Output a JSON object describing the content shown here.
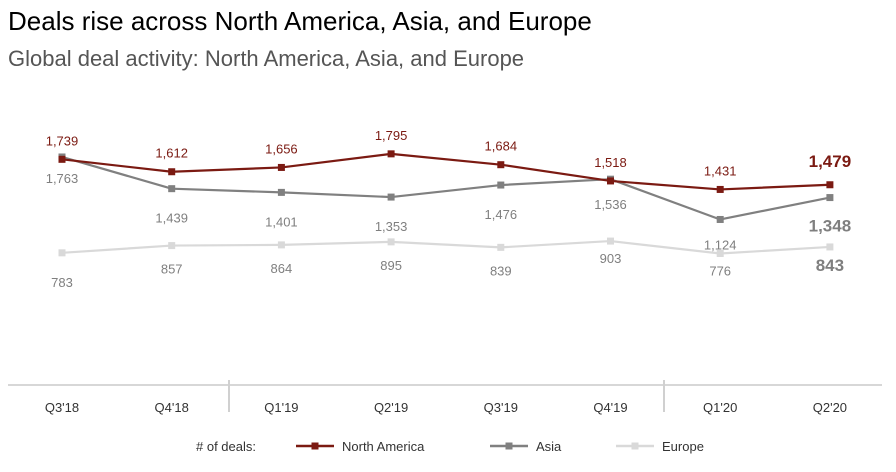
{
  "title": "Deals rise across North America, Asia, and Europe",
  "subtitle": "Global deal activity: North America, Asia, and Europe",
  "chart_data": {
    "type": "line",
    "title": "Deals rise across North America, Asia, and Europe",
    "subtitle": "Global deal activity: North America, Asia, and Europe",
    "categories": [
      "Q3'18",
      "Q4'18",
      "Q1'19",
      "Q2'19",
      "Q3'19",
      "Q4'19",
      "Q1'20",
      "Q2'20"
    ],
    "legend_title": "# of deals:",
    "legend_position": "bottom",
    "grid": false,
    "series": [
      {
        "name": "North America",
        "color": "#7b1a12",
        "values": [
          1739,
          1612,
          1656,
          1795,
          1684,
          1518,
          1431,
          1479
        ],
        "labels": [
          "1,739",
          "1,612",
          "1,656",
          "1,795",
          "1,684",
          "1,518",
          "1,431",
          "1,479"
        ]
      },
      {
        "name": "Asia",
        "color": "#808080",
        "values": [
          1763,
          1439,
          1401,
          1353,
          1476,
          1536,
          1124,
          1348
        ],
        "labels": [
          "1,763",
          "1,439",
          "1,401",
          "1,353",
          "1,476",
          "1,536",
          "1,124",
          "1,348"
        ]
      },
      {
        "name": "Europe",
        "color": "#d9d9d9",
        "values": [
          783,
          857,
          864,
          895,
          839,
          903,
          776,
          843
        ],
        "labels": [
          "783",
          "857",
          "864",
          "895",
          "839",
          "903",
          "776",
          "843"
        ]
      }
    ]
  }
}
